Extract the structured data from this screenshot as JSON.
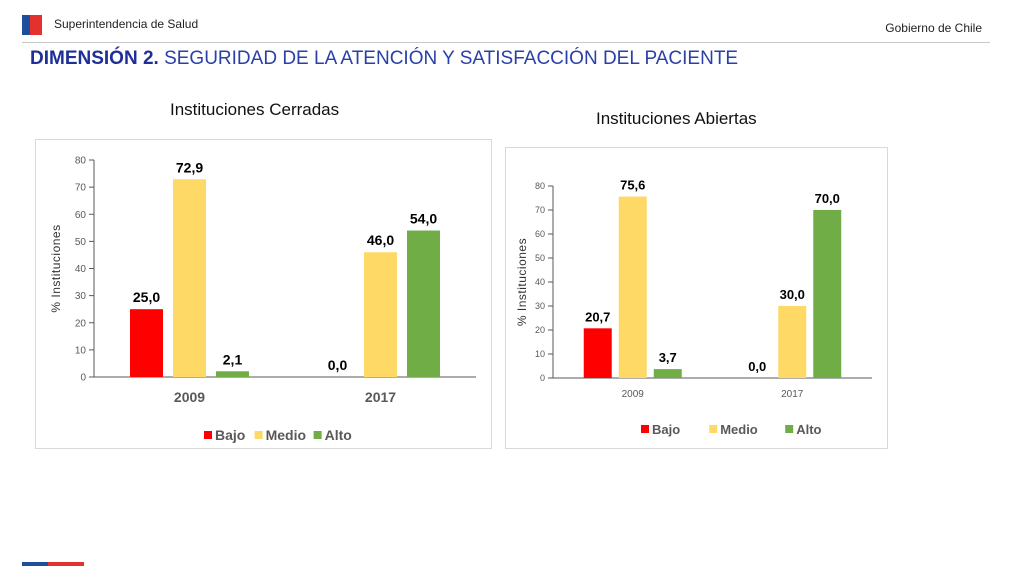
{
  "header": {
    "org_name": "Superintendencia de Salud",
    "gov_name": "Gobierno de Chile",
    "title_bold": "DIMENSIÓN 2.",
    "title_rest": " SEGURIDAD DE LA ATENCIÓN Y SATISFACCIÓN DEL PACIENTE"
  },
  "colors": {
    "Bajo": "#ff0000",
    "Medio": "#ffd966",
    "Alto": "#70ad47",
    "title": "#1e2f9a"
  },
  "chart_data": [
    {
      "type": "bar",
      "title": "Instituciones Cerradas",
      "categories": [
        "2009",
        "2017"
      ],
      "series": [
        {
          "name": "Bajo",
          "values": [
            25.0,
            0.0
          ],
          "labels": [
            "25,0",
            "0,0"
          ]
        },
        {
          "name": "Medio",
          "values": [
            72.9,
            46.0
          ],
          "labels": [
            "72,9",
            "46,0"
          ]
        },
        {
          "name": "Alto",
          "values": [
            2.1,
            54.0
          ],
          "labels": [
            "2,1",
            "54,0"
          ]
        }
      ],
      "ylabel": "% Instituciones",
      "xlabel": "",
      "ylim": [
        0,
        80
      ],
      "yticks": [
        "0",
        "10",
        "20",
        "30",
        "40",
        "50",
        "60",
        "70",
        "80"
      ],
      "legend": [
        "Bajo",
        "Medio",
        "Alto"
      ],
      "legend_position": "bottom"
    },
    {
      "type": "bar",
      "title": "Instituciones Abiertas",
      "categories": [
        "2009",
        "2017"
      ],
      "series": [
        {
          "name": "Bajo",
          "values": [
            20.7,
            0.0
          ],
          "labels": [
            "20,7",
            "0,0"
          ]
        },
        {
          "name": "Medio",
          "values": [
            75.6,
            30.0
          ],
          "labels": [
            "75,6",
            "30,0"
          ]
        },
        {
          "name": "Alto",
          "values": [
            3.7,
            70.0
          ],
          "labels": [
            "3,7",
            "70,0"
          ]
        }
      ],
      "ylabel": "% Instituciones",
      "xlabel": "",
      "ylim": [
        0,
        80
      ],
      "yticks": [
        "0",
        "10",
        "20",
        "30",
        "40",
        "50",
        "60",
        "70",
        "80"
      ],
      "legend": [
        "Bajo",
        "Medio",
        "Alto"
      ],
      "legend_position": "bottom"
    }
  ]
}
